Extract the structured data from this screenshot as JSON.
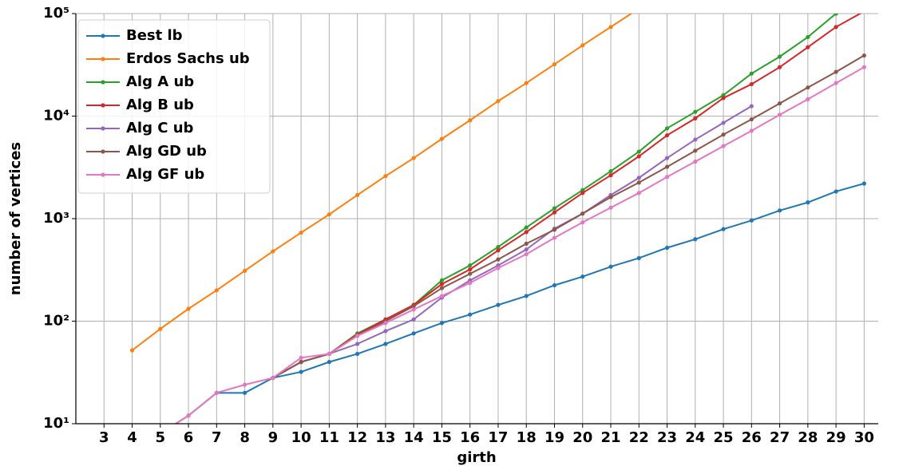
{
  "chart_data": {
    "type": "line",
    "x_label": "girth",
    "y_label": "number of vertices",
    "x": [
      3,
      4,
      5,
      6,
      7,
      8,
      9,
      10,
      11,
      12,
      13,
      14,
      15,
      16,
      17,
      18,
      19,
      20,
      21,
      22,
      23,
      24,
      25,
      26,
      27,
      28,
      29,
      30
    ],
    "xlim": [
      2,
      30.5
    ],
    "xticks": [
      3,
      4,
      5,
      6,
      7,
      8,
      9,
      10,
      11,
      12,
      13,
      14,
      15,
      16,
      17,
      18,
      19,
      20,
      21,
      22,
      23,
      24,
      25,
      26,
      27,
      28,
      29,
      30
    ],
    "ylim": [
      10,
      100000
    ],
    "log_y": true,
    "yticks": [
      {
        "value": 10,
        "label": "10¹"
      },
      {
        "value": 100,
        "label": "10²"
      },
      {
        "value": 1000,
        "label": "10³"
      },
      {
        "value": 10000,
        "label": "10⁴"
      },
      {
        "value": 100000,
        "label": "10⁵"
      }
    ],
    "grid": true,
    "legend": "upper left",
    "series": [
      {
        "name": "Best lb",
        "color": "#1f77b4",
        "values": [
          null,
          null,
          8,
          12,
          20,
          20,
          28,
          32,
          40,
          48,
          60,
          76,
          96,
          116,
          144,
          176,
          224,
          272,
          340,
          412,
          520,
          630,
          790,
          960,
          1200,
          1440,
          1840,
          2200
        ]
      },
      {
        "name": "Erdos Sachs ub",
        "color": "#ff7f0e",
        "values": [
          null,
          52,
          84,
          132,
          200,
          310,
          480,
          730,
          1100,
          1700,
          2600,
          3900,
          6000,
          9100,
          14000,
          21000,
          32000,
          49000,
          74000,
          112000,
          null,
          null,
          null,
          null,
          null,
          null,
          null,
          null
        ]
      },
      {
        "name": "Alg A ub",
        "color": "#2ca02c",
        "values": [
          null,
          null,
          null,
          null,
          null,
          null,
          28,
          40,
          48,
          76,
          104,
          144,
          250,
          350,
          530,
          820,
          1260,
          1900,
          2900,
          4500,
          7600,
          11000,
          16000,
          26000,
          38000,
          59000,
          100000,
          150000
        ]
      },
      {
        "name": "Alg B ub",
        "color": "#d62728",
        "values": [
          null,
          null,
          null,
          null,
          null,
          null,
          28,
          40,
          48,
          74,
          104,
          144,
          230,
          320,
          490,
          740,
          1150,
          1780,
          2650,
          4050,
          6500,
          9500,
          15000,
          20500,
          30000,
          47000,
          74000,
          105000
        ]
      },
      {
        "name": "Alg C ub",
        "color": "#9467bd",
        "values": [
          null,
          null,
          null,
          null,
          null,
          null,
          28,
          40,
          48,
          60,
          80,
          104,
          170,
          250,
          350,
          500,
          800,
          1120,
          1700,
          2500,
          3900,
          5900,
          8600,
          12500,
          null,
          null,
          null,
          null
        ]
      },
      {
        "name": "Alg GD ub",
        "color": "#8c564b",
        "values": [
          null,
          null,
          null,
          null,
          null,
          null,
          28,
          40,
          48,
          72,
          100,
          140,
          210,
          290,
          400,
          570,
          780,
          1120,
          1620,
          2250,
          3200,
          4600,
          6600,
          9300,
          13300,
          19000,
          27000,
          39000
        ]
      },
      {
        "name": "Alg GF ub",
        "color": "#e377c2",
        "values": [
          null,
          null,
          8,
          12,
          20,
          24,
          28,
          44,
          48,
          72,
          96,
          130,
          176,
          236,
          330,
          450,
          650,
          920,
          1280,
          1780,
          2550,
          3600,
          5100,
          7200,
          10300,
          14600,
          21000,
          30000
        ]
      }
    ]
  }
}
